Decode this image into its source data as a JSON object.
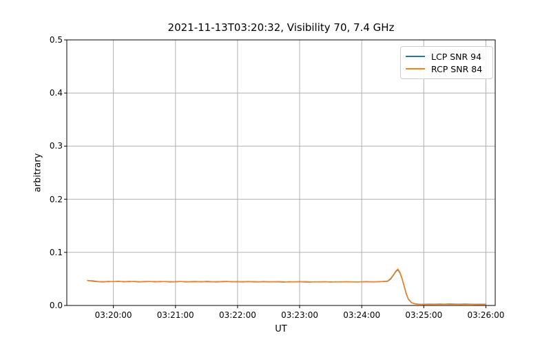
{
  "chart_data": {
    "type": "line",
    "title": "2021-11-13T03:20:32, Visibility 70, 7.4 GHz",
    "xlabel": "UT",
    "ylabel": "arbitrary",
    "x_unit": "seconds after 03:19:00 UT",
    "xlim": [
      15,
      429
    ],
    "ylim": [
      0,
      0.5
    ],
    "x_ticks": [
      60,
      120,
      180,
      240,
      300,
      360,
      420
    ],
    "x_tick_labels": [
      "03:20:00",
      "03:21:00",
      "03:22:00",
      "03:23:00",
      "03:24:00",
      "03:25:00",
      "03:26:00"
    ],
    "y_ticks": [
      0,
      0.1,
      0.2,
      0.3,
      0.4,
      0.5
    ],
    "y_tick_labels": [
      "0.0",
      "0.1",
      "0.2",
      "0.3",
      "0.4",
      "0.5"
    ],
    "grid": true,
    "grid_color": "#b0b0b0",
    "spine_color": "#000000",
    "background": "#ffffff",
    "legend_position": "upper right",
    "x": [
      35,
      40,
      45,
      50,
      55,
      60,
      65,
      70,
      75,
      80,
      85,
      90,
      95,
      100,
      105,
      110,
      115,
      120,
      125,
      130,
      135,
      140,
      145,
      150,
      155,
      160,
      165,
      170,
      175,
      180,
      185,
      190,
      195,
      200,
      205,
      210,
      215,
      220,
      225,
      230,
      235,
      240,
      245,
      250,
      255,
      260,
      265,
      270,
      275,
      280,
      285,
      290,
      295,
      300,
      305,
      310,
      315,
      320,
      325,
      328,
      331,
      333,
      335,
      337,
      339,
      341,
      343,
      345,
      348,
      351,
      355,
      360,
      365,
      370,
      375,
      380,
      385,
      390,
      395,
      400,
      405,
      410,
      415,
      420
    ],
    "series": [
      {
        "name": "LCP SNR 94",
        "color": "#1f77b4",
        "values": [
          0.047,
          0.0462,
          0.045,
          0.0443,
          0.0452,
          0.0448,
          0.0455,
          0.0446,
          0.0452,
          0.045,
          0.0444,
          0.045,
          0.0452,
          0.0446,
          0.0451,
          0.0449,
          0.0444,
          0.0447,
          0.0452,
          0.0443,
          0.0448,
          0.045,
          0.0445,
          0.0452,
          0.0447,
          0.0443,
          0.0449,
          0.0452,
          0.0445,
          0.0448,
          0.0443,
          0.045,
          0.0446,
          0.0444,
          0.0449,
          0.0443,
          0.0447,
          0.0445,
          0.0441,
          0.0447,
          0.0443,
          0.0448,
          0.0444,
          0.044,
          0.0446,
          0.0443,
          0.0447,
          0.0441,
          0.0445,
          0.0443,
          0.0447,
          0.0444,
          0.0442,
          0.0446,
          0.0448,
          0.0444,
          0.0447,
          0.045,
          0.0455,
          0.05,
          0.058,
          0.064,
          0.0672,
          0.061,
          0.05,
          0.036,
          0.022,
          0.012,
          0.0055,
          0.0032,
          0.0025,
          0.0023,
          0.0026,
          0.0024,
          0.0027,
          0.0025,
          0.0028,
          0.0026,
          0.0024,
          0.0027,
          0.0025,
          0.0023,
          0.0024,
          0.0022
        ]
      },
      {
        "name": "RCP SNR 84",
        "color": "#ff7f0e",
        "values": [
          0.0472,
          0.0455,
          0.0447,
          0.045,
          0.0446,
          0.0452,
          0.0449,
          0.0452,
          0.0446,
          0.0453,
          0.0448,
          0.0445,
          0.0449,
          0.0452,
          0.0445,
          0.0452,
          0.0448,
          0.0443,
          0.0449,
          0.045,
          0.0444,
          0.0446,
          0.0451,
          0.0446,
          0.0443,
          0.0449,
          0.0445,
          0.0448,
          0.0451,
          0.0444,
          0.0449,
          0.0445,
          0.045,
          0.0447,
          0.0443,
          0.0448,
          0.0444,
          0.0449,
          0.0446,
          0.0442,
          0.0447,
          0.0444,
          0.0449,
          0.0445,
          0.0442,
          0.0447,
          0.0443,
          0.0446,
          0.0442,
          0.0447,
          0.0444,
          0.0446,
          0.0444,
          0.0443,
          0.0446,
          0.0447,
          0.0444,
          0.0452,
          0.046,
          0.051,
          0.059,
          0.065,
          0.0685,
          0.062,
          0.051,
          0.037,
          0.023,
          0.0125,
          0.0058,
          0.003,
          0.0022,
          0.002,
          0.0022,
          0.0021,
          0.0023,
          0.0022,
          0.0024,
          0.0022,
          0.0021,
          0.0023,
          0.0022,
          0.002,
          0.0021,
          0.0019
        ]
      }
    ]
  }
}
